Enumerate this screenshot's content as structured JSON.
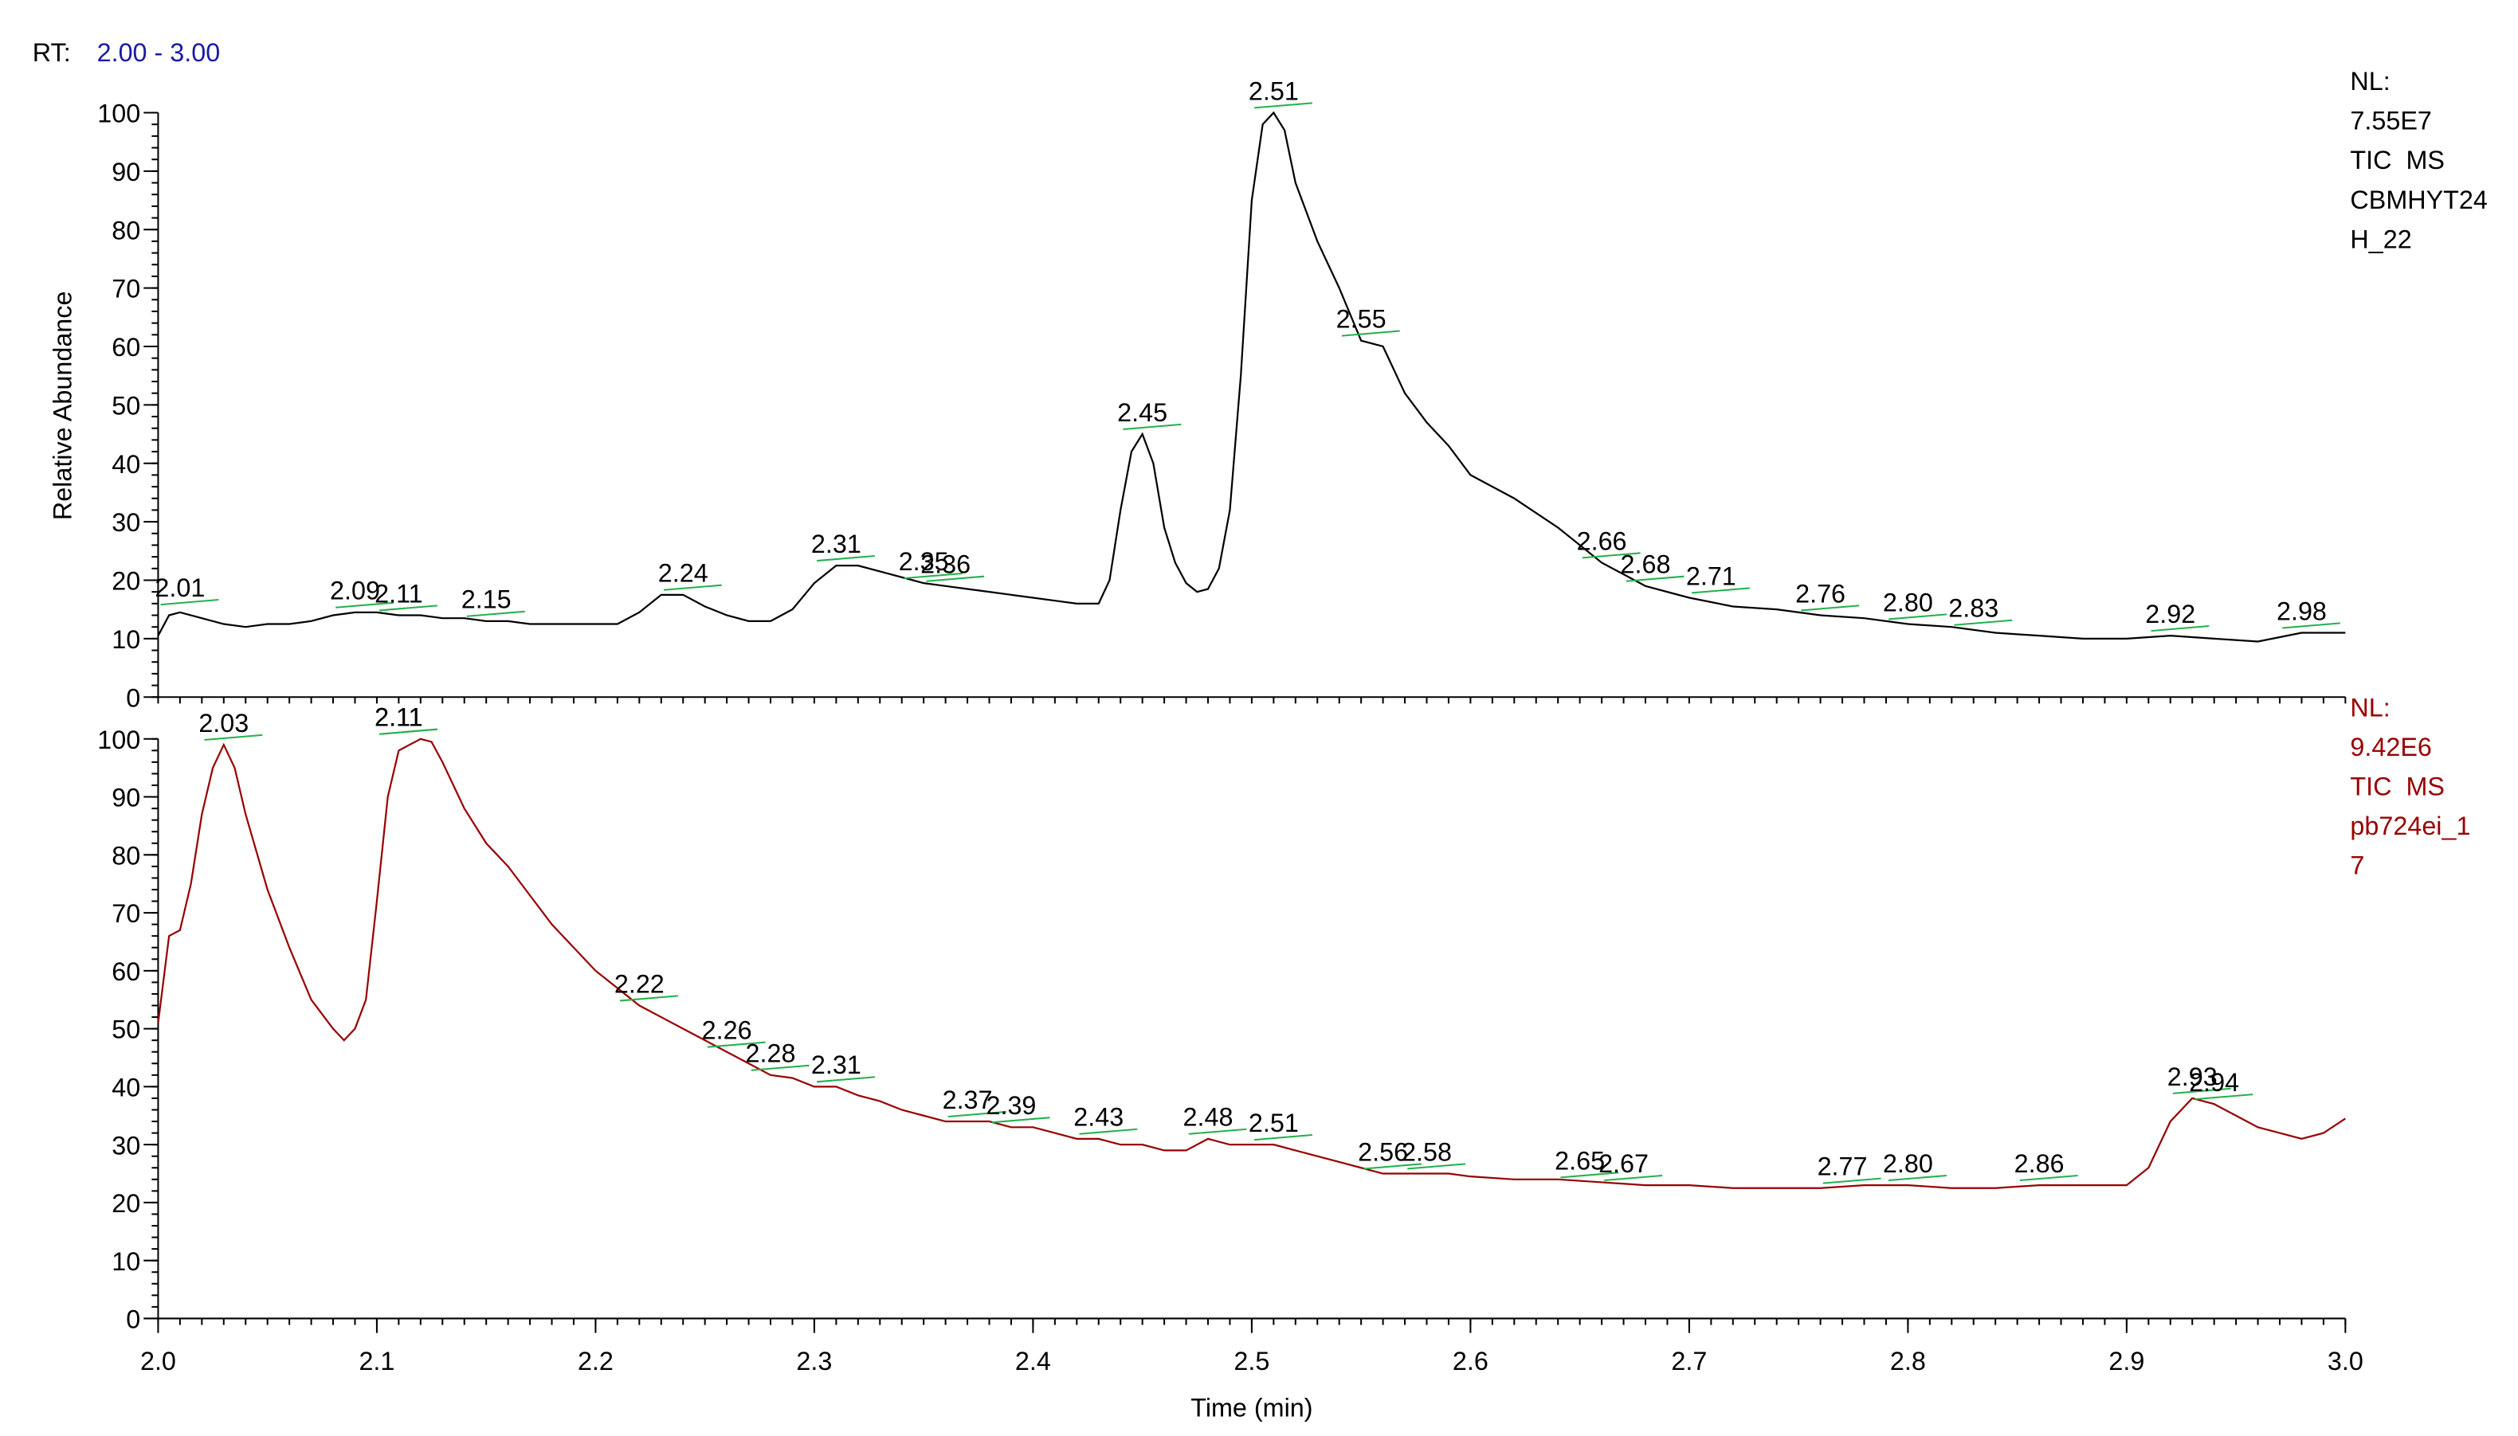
{
  "header": {
    "label": "RT:",
    "range": "2.00 - 3.00"
  },
  "chart_data": [
    {
      "type": "line",
      "ylabel": "Relative Abundance",
      "color": "#000000",
      "xlim": [
        2,
        3
      ],
      "ylim": [
        0,
        100
      ],
      "yticks": [
        0,
        10,
        20,
        30,
        40,
        50,
        60,
        70,
        80,
        90,
        100
      ],
      "minor_ytick_step": 2,
      "minor_xtick_step": 0.01,
      "info": [
        "NL:",
        "7.55E7",
        "TIC  MS",
        "CBMHYT24",
        "H_22"
      ],
      "x": [
        2.0,
        2.005,
        2.01,
        2.02,
        2.03,
        2.04,
        2.05,
        2.06,
        2.07,
        2.08,
        2.09,
        2.1,
        2.11,
        2.12,
        2.13,
        2.14,
        2.15,
        2.16,
        2.17,
        2.18,
        2.19,
        2.2,
        2.21,
        2.22,
        2.23,
        2.24,
        2.25,
        2.26,
        2.27,
        2.28,
        2.29,
        2.3,
        2.31,
        2.32,
        2.33,
        2.34,
        2.35,
        2.36,
        2.37,
        2.38,
        2.39,
        2.4,
        2.41,
        2.42,
        2.43,
        2.435,
        2.44,
        2.445,
        2.45,
        2.455,
        2.46,
        2.465,
        2.47,
        2.475,
        2.48,
        2.485,
        2.49,
        2.495,
        2.5,
        2.505,
        2.51,
        2.515,
        2.52,
        2.53,
        2.54,
        2.55,
        2.56,
        2.57,
        2.58,
        2.59,
        2.6,
        2.62,
        2.64,
        2.66,
        2.68,
        2.7,
        2.72,
        2.74,
        2.76,
        2.78,
        2.8,
        2.82,
        2.84,
        2.86,
        2.88,
        2.9,
        2.92,
        2.94,
        2.96,
        2.98,
        3.0
      ],
      "values": [
        10.5,
        14,
        14.5,
        13.5,
        12.5,
        12,
        12.5,
        12.5,
        13,
        14,
        14.5,
        14.5,
        14,
        14,
        13.5,
        13.5,
        13,
        13,
        12.5,
        12.5,
        12.5,
        12.5,
        12.5,
        14.5,
        17.5,
        17.5,
        15.5,
        14,
        13,
        13,
        15,
        19.5,
        22.5,
        22.5,
        21.5,
        20.5,
        19.5,
        19,
        18.5,
        18,
        17.5,
        17,
        16.5,
        16,
        16,
        20,
        32,
        42,
        45,
        40,
        29,
        23,
        19.5,
        18,
        18.5,
        22,
        32,
        55,
        85,
        98,
        100,
        97,
        88,
        78,
        70,
        61,
        60,
        52,
        47,
        43,
        38,
        34,
        29,
        23,
        19,
        17,
        15.5,
        15,
        14,
        13.5,
        12.5,
        12,
        11,
        10.5,
        10,
        10,
        10.5,
        10,
        9.5,
        11,
        11
      ],
      "peak_labels": [
        {
          "x": 2.01,
          "y": 15,
          "label": "2.01"
        },
        {
          "x": 2.09,
          "y": 14.5,
          "label": "2.09"
        },
        {
          "x": 2.11,
          "y": 14,
          "label": "2.11"
        },
        {
          "x": 2.15,
          "y": 13,
          "label": "2.15"
        },
        {
          "x": 2.24,
          "y": 17.5,
          "label": "2.24"
        },
        {
          "x": 2.31,
          "y": 22.5,
          "label": "2.31"
        },
        {
          "x": 2.35,
          "y": 19.5,
          "label": "2.35"
        },
        {
          "x": 2.36,
          "y": 19,
          "label": "2.36"
        },
        {
          "x": 2.45,
          "y": 45,
          "label": "2.45"
        },
        {
          "x": 2.51,
          "y": 100,
          "label": "2.51"
        },
        {
          "x": 2.55,
          "y": 61,
          "label": "2.55"
        },
        {
          "x": 2.66,
          "y": 23,
          "label": "2.66"
        },
        {
          "x": 2.68,
          "y": 19,
          "label": "2.68"
        },
        {
          "x": 2.71,
          "y": 17,
          "label": "2.71"
        },
        {
          "x": 2.76,
          "y": 14,
          "label": "2.76"
        },
        {
          "x": 2.8,
          "y": 12.5,
          "label": "2.80"
        },
        {
          "x": 2.83,
          "y": 11.5,
          "label": "2.83"
        },
        {
          "x": 2.92,
          "y": 10.5,
          "label": "2.92"
        },
        {
          "x": 2.98,
          "y": 11,
          "label": "2.98"
        }
      ]
    },
    {
      "type": "line",
      "xlabel": "Time (min)",
      "color": "#990000",
      "xlim": [
        2,
        3
      ],
      "ylim": [
        0,
        100
      ],
      "yticks": [
        0,
        10,
        20,
        30,
        40,
        50,
        60,
        70,
        80,
        90,
        100
      ],
      "xticks": [
        {
          "value": 2,
          "label": "2.0"
        },
        2.1,
        2.2,
        2.3,
        2.4,
        2.5,
        2.6,
        2.7,
        2.8,
        2.9,
        {
          "value": 3,
          "label": "3.0"
        }
      ],
      "minor_ytick_step": 2,
      "minor_xtick_step": 0.01,
      "info": [
        "NL:",
        "9.42E6",
        "TIC  MS",
        "pb724ei_1",
        "7"
      ],
      "x": [
        2.0,
        2.005,
        2.01,
        2.015,
        2.02,
        2.025,
        2.03,
        2.035,
        2.04,
        2.05,
        2.06,
        2.07,
        2.08,
        2.085,
        2.09,
        2.095,
        2.1,
        2.105,
        2.11,
        2.115,
        2.12,
        2.125,
        2.13,
        2.14,
        2.15,
        2.16,
        2.17,
        2.18,
        2.19,
        2.2,
        2.21,
        2.22,
        2.23,
        2.24,
        2.25,
        2.26,
        2.27,
        2.28,
        2.29,
        2.3,
        2.31,
        2.32,
        2.33,
        2.34,
        2.35,
        2.36,
        2.37,
        2.38,
        2.39,
        2.4,
        2.41,
        2.42,
        2.43,
        2.44,
        2.45,
        2.46,
        2.47,
        2.48,
        2.49,
        2.5,
        2.51,
        2.52,
        2.53,
        2.54,
        2.55,
        2.56,
        2.57,
        2.58,
        2.59,
        2.6,
        2.62,
        2.64,
        2.66,
        2.68,
        2.7,
        2.72,
        2.74,
        2.76,
        2.78,
        2.8,
        2.82,
        2.84,
        2.86,
        2.88,
        2.9,
        2.91,
        2.92,
        2.93,
        2.94,
        2.95,
        2.96,
        2.97,
        2.98,
        2.99,
        3.0
      ],
      "values": [
        51,
        66,
        67,
        75,
        87,
        95,
        99,
        95,
        87,
        74,
        64,
        55,
        50,
        48,
        50,
        55,
        72,
        90,
        98,
        99,
        100,
        99.5,
        96,
        88,
        82,
        78,
        73,
        68,
        64,
        60,
        57,
        54,
        52,
        50,
        48,
        46,
        44,
        42,
        41.5,
        40,
        40,
        38.5,
        37.5,
        36,
        35,
        34,
        34,
        34,
        33,
        33,
        32,
        31,
        31,
        30,
        30,
        29,
        29,
        31,
        30,
        30,
        30,
        29,
        28,
        27,
        26,
        25,
        25,
        25,
        25,
        24.5,
        24,
        24,
        23.5,
        23,
        23,
        22.5,
        22.5,
        22.5,
        23,
        23,
        22.5,
        22.5,
        23,
        23,
        23,
        26,
        34,
        38,
        37,
        35,
        33,
        32,
        31,
        32,
        34.5
      ],
      "peak_labels": [
        {
          "x": 2.03,
          "y": 99,
          "label": "2.03"
        },
        {
          "x": 2.11,
          "y": 100,
          "label": "2.11"
        },
        {
          "x": 2.11,
          "y": 100,
          "label": "2.11"
        },
        {
          "x": 2.22,
          "y": 54,
          "label": "2.22"
        },
        {
          "x": 2.26,
          "y": 46,
          "label": "2.26"
        },
        {
          "x": 2.28,
          "y": 42,
          "label": "2.28"
        },
        {
          "x": 2.31,
          "y": 40,
          "label": "2.31"
        },
        {
          "x": 2.37,
          "y": 34,
          "label": "2.37"
        },
        {
          "x": 2.39,
          "y": 33,
          "label": "2.39"
        },
        {
          "x": 2.43,
          "y": 31,
          "label": "2.43"
        },
        {
          "x": 2.48,
          "y": 31,
          "label": "2.48"
        },
        {
          "x": 2.51,
          "y": 30,
          "label": "2.51"
        },
        {
          "x": 2.56,
          "y": 25,
          "label": "2.56"
        },
        {
          "x": 2.58,
          "y": 25,
          "label": "2.58"
        },
        {
          "x": 2.65,
          "y": 23.5,
          "label": "2.65"
        },
        {
          "x": 2.67,
          "y": 23,
          "label": "2.67"
        },
        {
          "x": 2.77,
          "y": 22.5,
          "label": "2.77"
        },
        {
          "x": 2.8,
          "y": 23,
          "label": "2.80"
        },
        {
          "x": 2.86,
          "y": 23,
          "label": "2.86"
        },
        {
          "x": 2.93,
          "y": 38,
          "label": "2.93"
        },
        {
          "x": 2.94,
          "y": 37,
          "label": "2.94"
        }
      ]
    }
  ]
}
